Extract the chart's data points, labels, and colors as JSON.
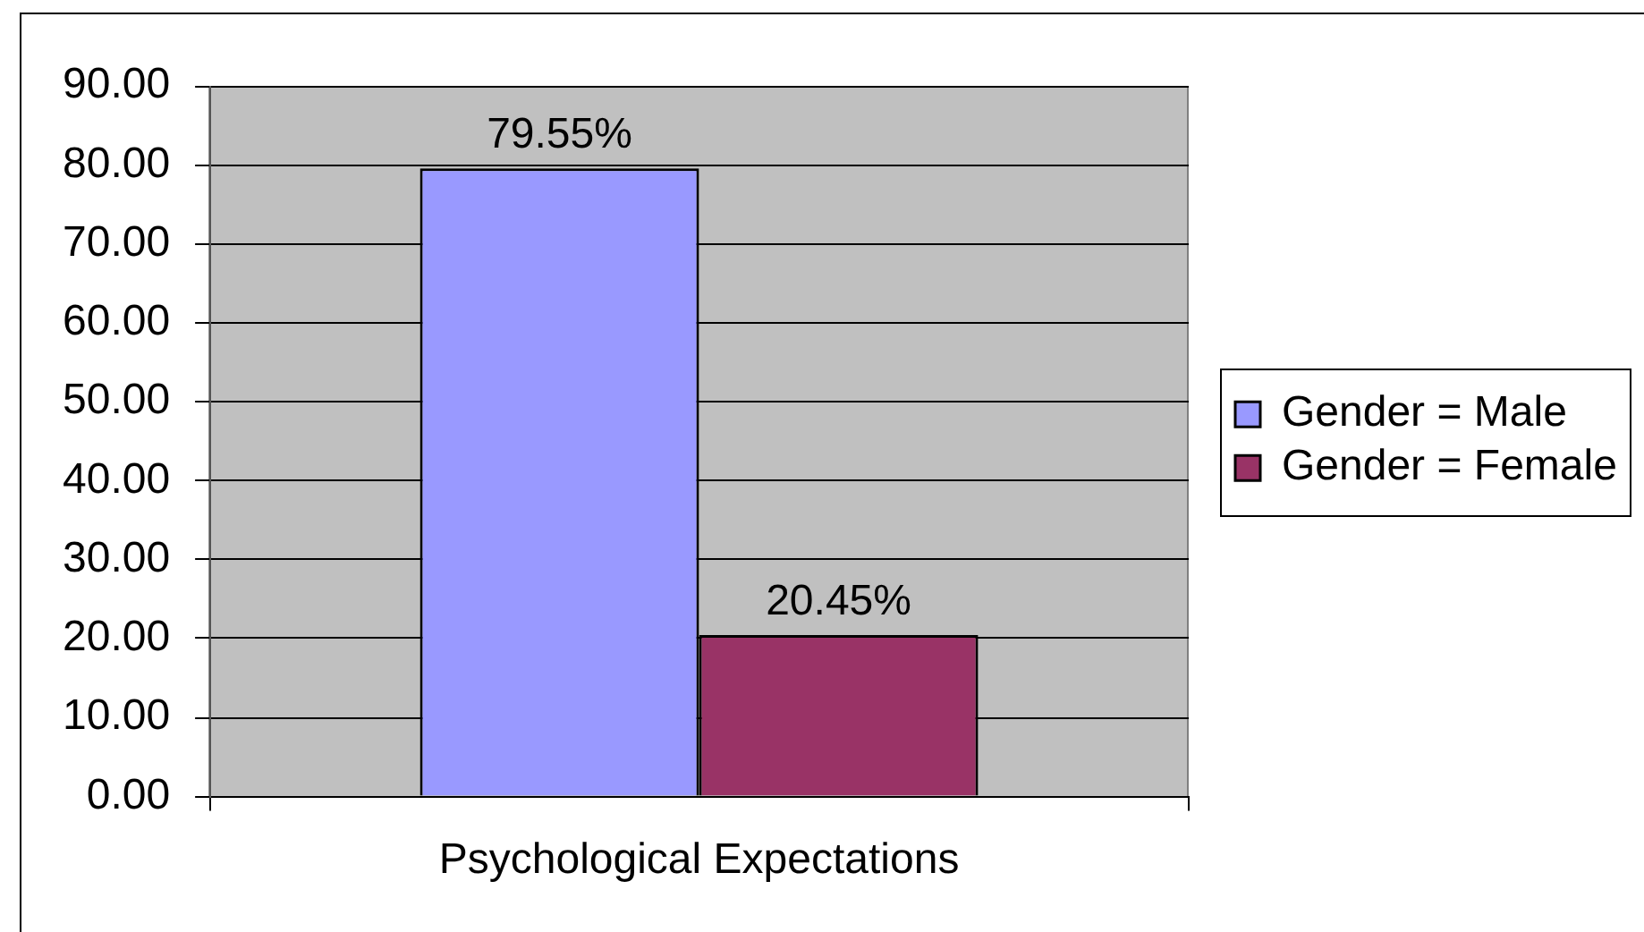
{
  "chart_data": {
    "type": "bar",
    "categories": [
      "Psychological Expectations"
    ],
    "series": [
      {
        "name": "Gender = Male",
        "color": "#9999ff",
        "values": [
          79.55
        ],
        "value_labels": [
          "79.55%"
        ]
      },
      {
        "name": "Gender = Female",
        "color": "#993366",
        "values": [
          20.45
        ],
        "value_labels": [
          "20.45%"
        ]
      }
    ],
    "ylim": [
      0,
      90
    ],
    "yticks": [
      {
        "value": 0,
        "label": "0.00"
      },
      {
        "value": 10,
        "label": "10.00"
      },
      {
        "value": 20,
        "label": "20.00"
      },
      {
        "value": 30,
        "label": "30.00"
      },
      {
        "value": 40,
        "label": "40.00"
      },
      {
        "value": 50,
        "label": "50.00"
      },
      {
        "value": 60,
        "label": "60.00"
      },
      {
        "value": 70,
        "label": "70.00"
      },
      {
        "value": 80,
        "label": "80.00"
      },
      {
        "value": 90,
        "label": "90.00"
      }
    ],
    "grid": "y",
    "legend": "right"
  }
}
